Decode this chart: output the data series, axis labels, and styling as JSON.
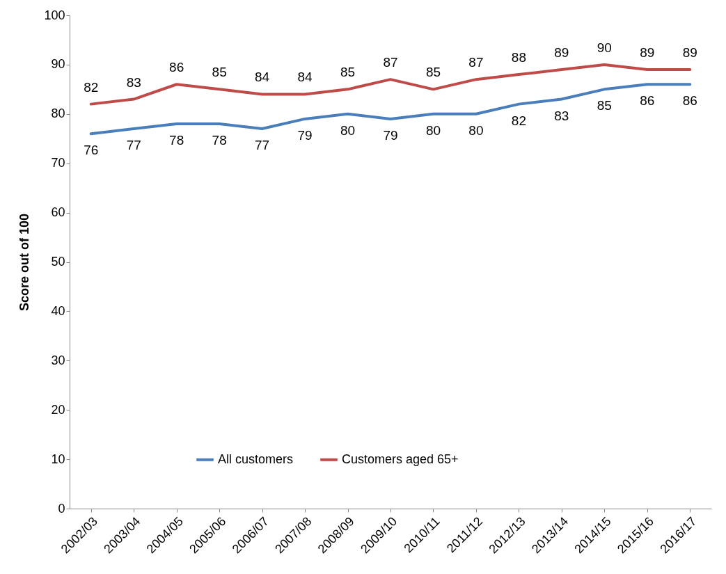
{
  "chart_data": {
    "type": "line",
    "ylabel": "Score out of 100",
    "categories": [
      "2002/03",
      "2003/04",
      "2004/05",
      "2005/06",
      "2006/07",
      "2007/08",
      "2008/09",
      "2009/10",
      "2010/11",
      "2011/12",
      "2012/13",
      "2013/14",
      "2014/15",
      "2015/16",
      "2016/17"
    ],
    "series": [
      {
        "name": "All customers",
        "color": "#4a7ebb",
        "values": [
          76,
          77,
          78,
          78,
          77,
          79,
          80,
          79,
          80,
          80,
          82,
          83,
          85,
          86,
          86
        ]
      },
      {
        "name": "Customers aged 65+",
        "color": "#be4b48",
        "values": [
          82,
          83,
          86,
          85,
          84,
          84,
          85,
          87,
          85,
          87,
          88,
          89,
          90,
          89,
          89
        ]
      }
    ],
    "ylim": [
      0,
      100
    ],
    "yticks": [
      0,
      10,
      20,
      30,
      40,
      50,
      60,
      70,
      80,
      90,
      100
    ],
    "data_labels": true,
    "legend": "bottom"
  }
}
